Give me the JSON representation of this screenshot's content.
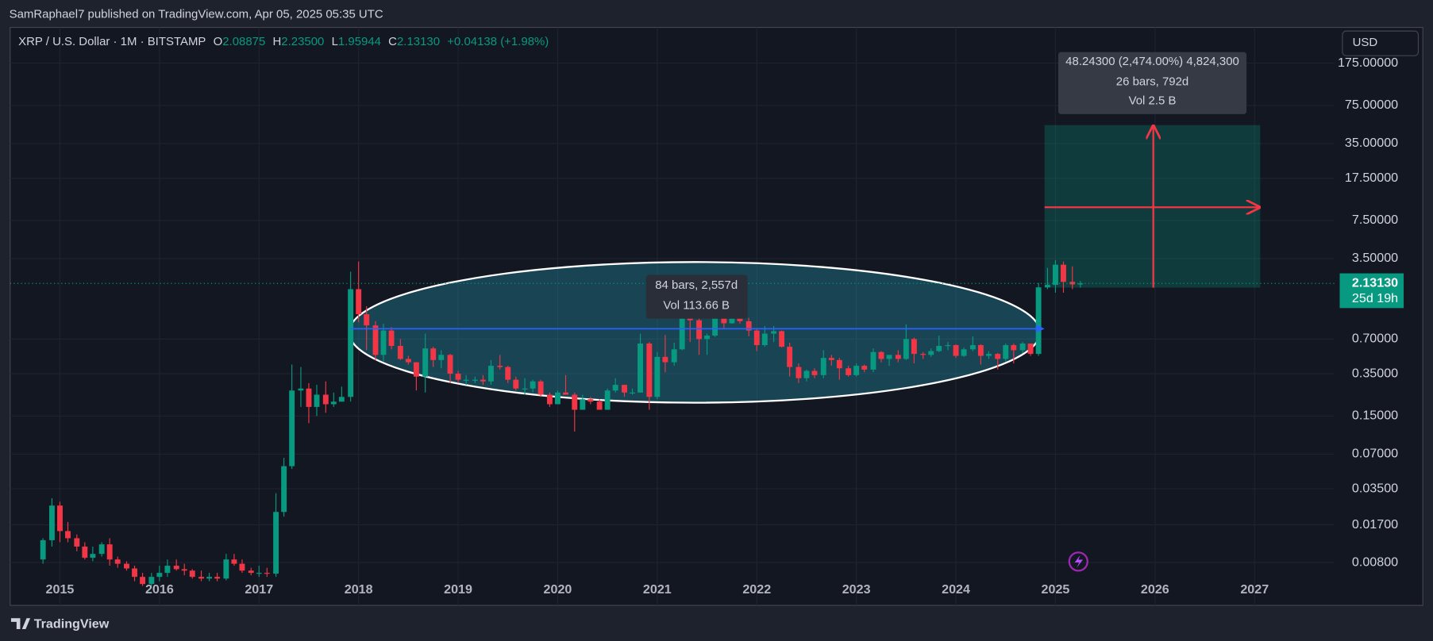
{
  "header": {
    "publisher": "SamRaphael7 published on TradingView.com, Apr 05, 2025 05:35 UTC"
  },
  "chart_data": {
    "type": "candlestick",
    "title": "XRP / U.S. Dollar · 1M · BITSTAMP",
    "ohlc_legend": [
      {
        "key": "O",
        "text": "2.08875"
      },
      {
        "key": "H",
        "text": "2.23500"
      },
      {
        "key": "L",
        "text": "1.95944"
      },
      {
        "key": "C",
        "text": "2.13130"
      }
    ],
    "change": "+0.04138 (+1.98%)",
    "currency": "USD",
    "log_scale": true,
    "grid": true,
    "colors": {
      "up": "#089981",
      "down": "#f23645"
    },
    "xlim": [
      2014.5,
      2027.8
    ],
    "xticks": [
      2015,
      2016,
      2017,
      2018,
      2019,
      2020,
      2021,
      2022,
      2023,
      2024,
      2025,
      2026,
      2027
    ],
    "ylim": [
      0.00339,
      358
    ],
    "yticks": [
      {
        "value": 0.008,
        "label": "0.00800"
      },
      {
        "value": 0.017,
        "label": "0.01700"
      },
      {
        "value": 0.035,
        "label": "0.03500"
      },
      {
        "value": 0.07,
        "label": "0.07000"
      },
      {
        "value": 0.15,
        "label": "0.15000"
      },
      {
        "value": 0.35,
        "label": "0.35000"
      },
      {
        "value": 0.7,
        "label": "0.70000"
      },
      {
        "value": 3.5,
        "label": "3.50000"
      },
      {
        "value": 7.5,
        "label": "7.50000"
      },
      {
        "value": 17.5,
        "label": "17.50000"
      },
      {
        "value": 35,
        "label": "35.00000"
      },
      {
        "value": 75,
        "label": "75.00000"
      },
      {
        "value": 175,
        "label": "175.00000"
      }
    ],
    "candles": [
      [
        2014.83,
        0.0085,
        0.013,
        0.0078,
        0.0125
      ],
      [
        2014.92,
        0.0125,
        0.029,
        0.011,
        0.025
      ],
      [
        2015.0,
        0.025,
        0.027,
        0.012,
        0.015
      ],
      [
        2015.08,
        0.015,
        0.018,
        0.012,
        0.013
      ],
      [
        2015.17,
        0.013,
        0.014,
        0.01,
        0.011
      ],
      [
        2015.25,
        0.011,
        0.012,
        0.0085,
        0.0088
      ],
      [
        2015.33,
        0.0088,
        0.011,
        0.0082,
        0.0095
      ],
      [
        2015.42,
        0.0095,
        0.012,
        0.009,
        0.0115
      ],
      [
        2015.5,
        0.0115,
        0.013,
        0.0075,
        0.0085
      ],
      [
        2015.58,
        0.0085,
        0.009,
        0.0072,
        0.0078
      ],
      [
        2015.67,
        0.0078,
        0.0082,
        0.0068,
        0.0071
      ],
      [
        2015.75,
        0.0071,
        0.0075,
        0.0055,
        0.006
      ],
      [
        2015.83,
        0.006,
        0.0065,
        0.005,
        0.0052
      ],
      [
        2015.92,
        0.0052,
        0.0065,
        0.005,
        0.006
      ],
      [
        2016.0,
        0.006,
        0.0075,
        0.0055,
        0.0065
      ],
      [
        2016.08,
        0.0065,
        0.0085,
        0.006,
        0.0075
      ],
      [
        2016.17,
        0.0075,
        0.0085,
        0.0068,
        0.007
      ],
      [
        2016.25,
        0.007,
        0.0078,
        0.0062,
        0.0068
      ],
      [
        2016.33,
        0.0068,
        0.007,
        0.0058,
        0.006
      ],
      [
        2016.42,
        0.006,
        0.0068,
        0.0055,
        0.0058
      ],
      [
        2016.5,
        0.0058,
        0.0065,
        0.0055,
        0.006
      ],
      [
        2016.58,
        0.006,
        0.0065,
        0.0055,
        0.0058
      ],
      [
        2016.67,
        0.0058,
        0.0095,
        0.0056,
        0.0085
      ],
      [
        2016.75,
        0.0085,
        0.0095,
        0.0075,
        0.0078
      ],
      [
        2016.83,
        0.0078,
        0.0085,
        0.0065,
        0.0068
      ],
      [
        2016.92,
        0.0068,
        0.0072,
        0.0062,
        0.0065
      ],
      [
        2017.0,
        0.0065,
        0.0075,
        0.006,
        0.0065
      ],
      [
        2017.08,
        0.0065,
        0.0072,
        0.006,
        0.0064
      ],
      [
        2017.17,
        0.0064,
        0.032,
        0.006,
        0.022
      ],
      [
        2017.25,
        0.022,
        0.065,
        0.02,
        0.055
      ],
      [
        2017.33,
        0.055,
        0.42,
        0.052,
        0.25
      ],
      [
        2017.42,
        0.25,
        0.4,
        0.18,
        0.26
      ],
      [
        2017.5,
        0.26,
        0.29,
        0.13,
        0.18
      ],
      [
        2017.58,
        0.18,
        0.28,
        0.15,
        0.23
      ],
      [
        2017.67,
        0.23,
        0.3,
        0.16,
        0.19
      ],
      [
        2017.75,
        0.19,
        0.24,
        0.18,
        0.2
      ],
      [
        2017.83,
        0.2,
        0.27,
        0.2,
        0.22
      ],
      [
        2017.92,
        0.22,
        2.7,
        0.2,
        1.9
      ],
      [
        2018.0,
        1.9,
        3.3,
        0.98,
        1.15
      ],
      [
        2018.08,
        1.15,
        1.35,
        0.56,
        0.92
      ],
      [
        2018.17,
        0.92,
        1.0,
        0.46,
        0.51
      ],
      [
        2018.25,
        0.51,
        0.95,
        0.45,
        0.83
      ],
      [
        2018.33,
        0.83,
        0.89,
        0.57,
        0.61
      ],
      [
        2018.42,
        0.61,
        0.7,
        0.46,
        0.47
      ],
      [
        2018.5,
        0.47,
        0.5,
        0.42,
        0.44
      ],
      [
        2018.58,
        0.44,
        0.44,
        0.25,
        0.33
      ],
      [
        2018.67,
        0.33,
        0.78,
        0.24,
        0.58
      ],
      [
        2018.75,
        0.58,
        0.6,
        0.4,
        0.46
      ],
      [
        2018.83,
        0.46,
        0.56,
        0.39,
        0.51
      ],
      [
        2018.92,
        0.51,
        0.52,
        0.29,
        0.35
      ],
      [
        2019.0,
        0.35,
        0.37,
        0.29,
        0.31
      ],
      [
        2019.08,
        0.31,
        0.34,
        0.28,
        0.31
      ],
      [
        2019.17,
        0.31,
        0.33,
        0.29,
        0.31
      ],
      [
        2019.25,
        0.31,
        0.34,
        0.28,
        0.3
      ],
      [
        2019.33,
        0.3,
        0.46,
        0.28,
        0.41
      ],
      [
        2019.42,
        0.41,
        0.51,
        0.38,
        0.4
      ],
      [
        2019.5,
        0.4,
        0.41,
        0.29,
        0.31
      ],
      [
        2019.58,
        0.31,
        0.33,
        0.25,
        0.26
      ],
      [
        2019.67,
        0.26,
        0.32,
        0.23,
        0.26
      ],
      [
        2019.75,
        0.26,
        0.31,
        0.24,
        0.3
      ],
      [
        2019.83,
        0.3,
        0.31,
        0.22,
        0.23
      ],
      [
        2019.92,
        0.23,
        0.24,
        0.18,
        0.19
      ],
      [
        2020.0,
        0.19,
        0.25,
        0.19,
        0.24
      ],
      [
        2020.08,
        0.24,
        0.34,
        0.24,
        0.23
      ],
      [
        2020.17,
        0.23,
        0.24,
        0.11,
        0.17
      ],
      [
        2020.25,
        0.17,
        0.23,
        0.17,
        0.21
      ],
      [
        2020.33,
        0.21,
        0.22,
        0.19,
        0.2
      ],
      [
        2020.42,
        0.2,
        0.21,
        0.17,
        0.17
      ],
      [
        2020.5,
        0.17,
        0.26,
        0.17,
        0.25
      ],
      [
        2020.58,
        0.25,
        0.32,
        0.24,
        0.28
      ],
      [
        2020.67,
        0.28,
        0.28,
        0.22,
        0.24
      ],
      [
        2020.75,
        0.24,
        0.26,
        0.23,
        0.24
      ],
      [
        2020.83,
        0.24,
        0.78,
        0.24,
        0.64
      ],
      [
        2020.92,
        0.64,
        0.66,
        0.17,
        0.22
      ],
      [
        2021.0,
        0.22,
        0.54,
        0.21,
        0.49
      ],
      [
        2021.08,
        0.49,
        0.76,
        0.36,
        0.44
      ],
      [
        2021.17,
        0.44,
        0.65,
        0.41,
        0.57
      ],
      [
        2021.25,
        0.57,
        1.96,
        0.56,
        1.6
      ],
      [
        2021.33,
        1.6,
        1.77,
        0.66,
        1.02
      ],
      [
        2021.42,
        1.02,
        1.1,
        0.51,
        0.7
      ],
      [
        2021.5,
        0.7,
        0.78,
        0.51,
        0.75
      ],
      [
        2021.58,
        0.75,
        1.34,
        0.73,
        1.17
      ],
      [
        2021.67,
        1.17,
        1.41,
        0.86,
        0.96
      ],
      [
        2021.75,
        0.96,
        1.35,
        0.95,
        1.08
      ],
      [
        2021.83,
        1.08,
        1.35,
        0.95,
        1.0
      ],
      [
        2021.92,
        1.0,
        1.07,
        0.74,
        0.83
      ],
      [
        2022.0,
        0.83,
        0.86,
        0.55,
        0.62
      ],
      [
        2022.08,
        0.62,
        0.91,
        0.6,
        0.78
      ],
      [
        2022.17,
        0.78,
        0.91,
        0.66,
        0.82
      ],
      [
        2022.25,
        0.82,
        0.83,
        0.59,
        0.6
      ],
      [
        2022.33,
        0.6,
        0.65,
        0.33,
        0.4
      ],
      [
        2022.42,
        0.4,
        0.43,
        0.29,
        0.32
      ],
      [
        2022.5,
        0.32,
        0.38,
        0.3,
        0.37
      ],
      [
        2022.58,
        0.37,
        0.39,
        0.32,
        0.34
      ],
      [
        2022.67,
        0.34,
        0.56,
        0.32,
        0.48
      ],
      [
        2022.75,
        0.48,
        0.51,
        0.41,
        0.46
      ],
      [
        2022.83,
        0.46,
        0.48,
        0.31,
        0.39
      ],
      [
        2022.92,
        0.39,
        0.41,
        0.33,
        0.34
      ],
      [
        2023.0,
        0.34,
        0.43,
        0.33,
        0.41
      ],
      [
        2023.08,
        0.41,
        0.42,
        0.36,
        0.38
      ],
      [
        2023.17,
        0.38,
        0.58,
        0.36,
        0.54
      ],
      [
        2023.25,
        0.54,
        0.55,
        0.44,
        0.47
      ],
      [
        2023.33,
        0.47,
        0.49,
        0.41,
        0.51
      ],
      [
        2023.42,
        0.51,
        0.56,
        0.44,
        0.47
      ],
      [
        2023.5,
        0.47,
        0.94,
        0.46,
        0.7
      ],
      [
        2023.58,
        0.7,
        0.72,
        0.43,
        0.52
      ],
      [
        2023.67,
        0.52,
        0.54,
        0.47,
        0.51
      ],
      [
        2023.75,
        0.51,
        0.58,
        0.49,
        0.55
      ],
      [
        2023.83,
        0.55,
        0.75,
        0.54,
        0.61
      ],
      [
        2023.92,
        0.61,
        0.66,
        0.56,
        0.62
      ],
      [
        2024.0,
        0.62,
        0.63,
        0.48,
        0.5
      ],
      [
        2024.08,
        0.5,
        0.59,
        0.49,
        0.57
      ],
      [
        2024.17,
        0.57,
        0.74,
        0.55,
        0.62
      ],
      [
        2024.25,
        0.62,
        0.63,
        0.42,
        0.5
      ],
      [
        2024.33,
        0.5,
        0.55,
        0.47,
        0.52
      ],
      [
        2024.42,
        0.52,
        0.53,
        0.38,
        0.47
      ],
      [
        2024.5,
        0.47,
        0.64,
        0.45,
        0.62
      ],
      [
        2024.58,
        0.62,
        0.64,
        0.43,
        0.56
      ],
      [
        2024.67,
        0.56,
        0.66,
        0.53,
        0.64
      ],
      [
        2024.75,
        0.64,
        0.64,
        0.5,
        0.52
      ],
      [
        2024.83,
        0.52,
        2.15,
        0.5,
        1.97
      ],
      [
        2024.92,
        1.97,
        2.91,
        1.9,
        2.07
      ],
      [
        2025.0,
        2.07,
        3.4,
        1.77,
        3.1
      ],
      [
        2025.08,
        3.1,
        3.3,
        1.77,
        2.2
      ],
      [
        2025.17,
        2.2,
        3.0,
        1.9,
        2.09
      ],
      [
        2025.25,
        2.08875,
        2.235,
        1.95944,
        2.1313
      ]
    ],
    "last_price_label": "2.13130",
    "countdown": "25d 19h",
    "annotations": [
      {
        "lines": [
          "84 bars, 2,557d",
          "Vol 113.66 B"
        ]
      },
      {
        "lines": [
          "48.24300 (2,474.00%) 4,824,300",
          "26 bars, 792d",
          "Vol 2.5 B"
        ]
      }
    ]
  },
  "footer": {
    "brand": "TradingView"
  }
}
